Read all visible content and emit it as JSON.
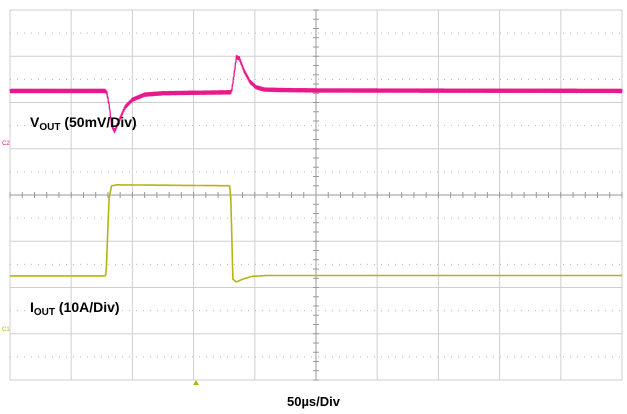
{
  "labels": {
    "vout_main": "V",
    "vout_sub": "OUT",
    "vout_scale": " (50mV/Div)",
    "iout_main": "I",
    "iout_sub": "OUT",
    "iout_scale": " (10A/Div)",
    "time_scale": "50µs/Div",
    "ch2_marker": "C2",
    "ch1_marker": "C1"
  },
  "colors": {
    "vout": "#e8198b",
    "iout": "#b5b511",
    "grid": "#cfcfcf",
    "grid_dots": "#b8b8b8",
    "background": "#ffffff"
  },
  "chart_data": {
    "type": "line",
    "title": "",
    "xlabel": "50µs/Div",
    "ylabel": "",
    "grid": true,
    "divisions": {
      "x": 10,
      "y": 8
    },
    "xlim_div": [
      0,
      10
    ],
    "ylim_div": [
      0,
      8
    ],
    "series": [
      {
        "name": "VOUT (50mV/Div)",
        "channel": "C2",
        "scale": "50mV/Div",
        "baseline_div": 6.25,
        "ripple_div": 0.07,
        "points_div": [
          [
            0.0,
            6.25
          ],
          [
            1.55,
            6.25
          ],
          [
            1.58,
            6.22
          ],
          [
            1.62,
            5.95
          ],
          [
            1.66,
            5.5
          ],
          [
            1.71,
            5.38
          ],
          [
            1.78,
            5.6
          ],
          [
            1.88,
            5.9
          ],
          [
            2.0,
            6.06
          ],
          [
            2.2,
            6.17
          ],
          [
            2.5,
            6.2
          ],
          [
            3.0,
            6.21
          ],
          [
            3.6,
            6.22
          ],
          [
            3.62,
            6.24
          ],
          [
            3.66,
            6.6
          ],
          [
            3.7,
            6.98
          ],
          [
            3.75,
            6.95
          ],
          [
            3.82,
            6.7
          ],
          [
            3.92,
            6.45
          ],
          [
            4.02,
            6.33
          ],
          [
            4.15,
            6.28
          ],
          [
            4.4,
            6.27
          ],
          [
            5.0,
            6.26
          ],
          [
            10.0,
            6.25
          ]
        ]
      },
      {
        "name": "IOUT (10A/Div)",
        "channel": "C1",
        "scale": "10A/Div",
        "points_div": [
          [
            0.0,
            2.25
          ],
          [
            1.55,
            2.25
          ],
          [
            1.57,
            2.3
          ],
          [
            1.62,
            3.95
          ],
          [
            1.66,
            4.2
          ],
          [
            1.75,
            4.22
          ],
          [
            3.59,
            4.2
          ],
          [
            3.61,
            3.9
          ],
          [
            3.64,
            2.18
          ],
          [
            3.7,
            2.12
          ],
          [
            3.8,
            2.18
          ],
          [
            3.95,
            2.24
          ],
          [
            4.2,
            2.26
          ],
          [
            10.0,
            2.26
          ]
        ]
      }
    ]
  }
}
